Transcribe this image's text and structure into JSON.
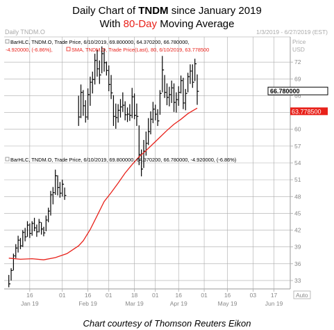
{
  "titles": {
    "line1_prefix": "Daily Chart of ",
    "line1_ticker": "TNDM",
    "line1_suffix": " since January 2019",
    "line2_prefix": "With ",
    "line2_highlight": "80-Day",
    "line2_suffix": " Moving Average"
  },
  "header": {
    "symbol": "Daily TNDM.O",
    "date_range": "1/3/2019 - 6/27/2019 (EST)",
    "price_label": "Price",
    "currency": "USD"
  },
  "legend": {
    "line1": "BarHLC, TNDM.O, Trade Price, 6/10/2019, 69.800000, 64.370200, 66.780000,",
    "line2": "-4.920000, (-6.86%),",
    "line2_sma": "SMA, TNDM.O, Trade Price(Last),  80, 6/10/2019, 63.778500",
    "lower_legend": "BarHLC, TNDM.O, Trade Price, 6/10/2019, 69.800000, 64.370200, 66.780000, -4.920000, (-6.86%)"
  },
  "caption": "Chart courtesy of Thomson Reuters Eikon",
  "colors": {
    "bars": "#000000",
    "sma": "#e8211a",
    "last_price_bg": "#ffffff",
    "sma_label_bg": "#e8211a",
    "grid": "#aaaaaa",
    "axis_text": "#888888"
  },
  "chart_data": {
    "type": "ohlc-bar",
    "ylim": [
      31.5,
      76.5
    ],
    "y_ticks": [
      33,
      36,
      39,
      42,
      45,
      48,
      51,
      54,
      57,
      60,
      63,
      66,
      69,
      72
    ],
    "x_tick_labels": [
      {
        "top": "16",
        "bottom": "Jan 19",
        "x": 9
      },
      {
        "top": "01",
        "bottom": "",
        "x": 23
      },
      {
        "top": "16",
        "bottom": "Feb 19",
        "x": 34
      },
      {
        "top": "01",
        "bottom": "",
        "x": 43
      },
      {
        "top": "18",
        "bottom": "Mar 19",
        "x": 54
      },
      {
        "top": "01",
        "bottom": "",
        "x": 63
      },
      {
        "top": "16",
        "bottom": "Apr 19",
        "x": 73
      },
      {
        "top": "01",
        "bottom": "",
        "x": 84
      },
      {
        "top": "16",
        "bottom": "May 19",
        "x": 94
      },
      {
        "top": "03",
        "bottom": "",
        "x": 105
      },
      {
        "top": "17",
        "bottom": "Jun 19",
        "x": 114
      }
    ],
    "last_price_label": "66.780000",
    "sma_label": "63.778500",
    "auto_label": "Auto",
    "x_day_range": [
      -2,
      121
    ],
    "bars": [
      [
        0,
        34,
        31.8,
        32.4
      ],
      [
        1,
        35.2,
        33,
        34.8
      ],
      [
        2,
        37.8,
        34.8,
        37.4
      ],
      [
        3,
        39.5,
        37,
        38.8
      ],
      [
        4,
        41,
        38,
        40.2
      ],
      [
        5,
        40.6,
        38.6,
        39.2
      ],
      [
        6,
        42,
        39,
        41.6
      ],
      [
        7,
        42.4,
        40,
        40.8
      ],
      [
        8,
        43.6,
        40.8,
        42.9
      ],
      [
        9,
        43.2,
        40.6,
        41.4
      ],
      [
        10,
        43.6,
        41,
        43.2
      ],
      [
        11,
        44.2,
        41.8,
        42.4
      ],
      [
        12,
        43,
        40.8,
        41.7
      ],
      [
        13,
        44,
        41.6,
        43.4
      ],
      [
        14,
        43.4,
        41.2,
        42.2
      ],
      [
        15,
        42.6,
        40.9,
        41.5
      ],
      [
        16,
        44.6,
        41.8,
        43.8
      ],
      [
        17,
        46,
        43.4,
        45.4
      ],
      [
        18,
        49,
        44.6,
        48.3
      ],
      [
        19,
        49.7,
        46.6,
        48.7
      ],
      [
        20,
        52.8,
        48.3,
        51.7
      ],
      [
        21,
        51.8,
        48.2,
        49.6
      ],
      [
        22,
        50.6,
        47.8,
        48.6
      ],
      [
        23,
        51,
        48,
        50.2
      ],
      [
        24,
        49.6,
        47.4,
        48.2
      ],
      [
        30,
        66,
        60.6,
        62.2
      ],
      [
        31,
        68,
        62,
        66.6
      ],
      [
        32,
        67,
        62.4,
        64.2
      ],
      [
        33,
        65.2,
        61.2,
        62.2
      ],
      [
        34,
        67.3,
        61.7,
        66.2
      ],
      [
        35,
        69.4,
        64.2,
        68.4
      ],
      [
        36,
        70.3,
        66.4,
        68.9
      ],
      [
        37,
        73.5,
        68,
        72.3
      ],
      [
        38,
        74.2,
        69.4,
        70.8
      ],
      [
        39,
        72.3,
        68.1,
        69.7
      ],
      [
        40,
        74.8,
        70,
        73.5
      ],
      [
        41,
        74.4,
        70.3,
        71.9
      ],
      [
        42,
        72.1,
        69.6,
        70.5
      ],
      [
        43,
        71.4,
        66.8,
        68
      ],
      [
        44,
        69.7,
        65.4,
        66.5
      ],
      [
        45,
        66.1,
        60.6,
        62.3
      ],
      [
        46,
        64.6,
        60.1,
        62.1
      ],
      [
        47,
        64.5,
        61.2,
        63.4
      ],
      [
        48,
        65.4,
        62.1,
        64
      ],
      [
        49,
        66.6,
        63.1,
        64.3
      ],
      [
        50,
        65,
        61.6,
        62.6
      ],
      [
        51,
        63.9,
        61.3,
        62.7
      ],
      [
        52,
        64.5,
        61.5,
        62.5
      ],
      [
        53,
        67.4,
        62,
        65.8
      ],
      [
        54,
        66.4,
        61.8,
        62.5
      ],
      [
        55,
        64.6,
        60.6,
        62.3
      ],
      [
        56,
        60.7,
        53.6,
        55.5
      ],
      [
        57,
        56.4,
        51.6,
        52.9
      ],
      [
        58,
        58.1,
        53.1,
        56.1
      ],
      [
        59,
        59.6,
        55.3,
        57.5
      ],
      [
        60,
        62,
        57.2,
        59.6
      ],
      [
        61,
        63.2,
        59.1,
        61.8
      ],
      [
        62,
        64.9,
        61.1,
        63.6
      ],
      [
        63,
        64.4,
        61.6,
        62.7
      ],
      [
        64,
        63.6,
        60.6,
        61.5
      ],
      [
        65,
        67,
        62.6,
        66.4
      ],
      [
        66,
        73.1,
        66.6,
        70.6
      ],
      [
        67,
        69.7,
        65.6,
        66.6
      ],
      [
        68,
        68.2,
        64.3,
        65.7
      ],
      [
        69,
        67.6,
        64.1,
        66.2
      ],
      [
        70,
        68.7,
        64.7,
        67.4
      ],
      [
        71,
        68.2,
        63.1,
        64.8
      ],
      [
        72,
        66.6,
        63,
        65.3
      ],
      [
        73,
        67.7,
        64.2,
        66.6
      ],
      [
        74,
        69.6,
        66.4,
        68.7
      ],
      [
        75,
        69.2,
        63.6,
        64.7
      ],
      [
        76,
        67.2,
        63.4,
        66.4
      ],
      [
        77,
        70.1,
        66.6,
        69.4
      ],
      [
        78,
        71.6,
        68.1,
        70.4
      ],
      [
        79,
        71.6,
        67.4,
        68.4
      ],
      [
        80,
        72.6,
        68.6,
        71.7
      ],
      [
        81,
        69.8,
        64.37,
        66.78
      ]
    ],
    "sma": [
      [
        0,
        37
      ],
      [
        5,
        36.8
      ],
      [
        10,
        36.9
      ],
      [
        15,
        36.7
      ],
      [
        20,
        37.1
      ],
      [
        25,
        37.8
      ],
      [
        30,
        39.2
      ],
      [
        32,
        40.1
      ],
      [
        35,
        42.1
      ],
      [
        38,
        44.6
      ],
      [
        41,
        47.1
      ],
      [
        44,
        48.7
      ],
      [
        47,
        50.4
      ],
      [
        50,
        52.2
      ],
      [
        53,
        53.7
      ],
      [
        56,
        55.1
      ],
      [
        59,
        56.2
      ],
      [
        62,
        57.4
      ],
      [
        65,
        58.6
      ],
      [
        68,
        59.8
      ],
      [
        71,
        60.9
      ],
      [
        74,
        61.8
      ],
      [
        77,
        62.8
      ],
      [
        79,
        63.3
      ],
      [
        81,
        63.78
      ]
    ]
  }
}
